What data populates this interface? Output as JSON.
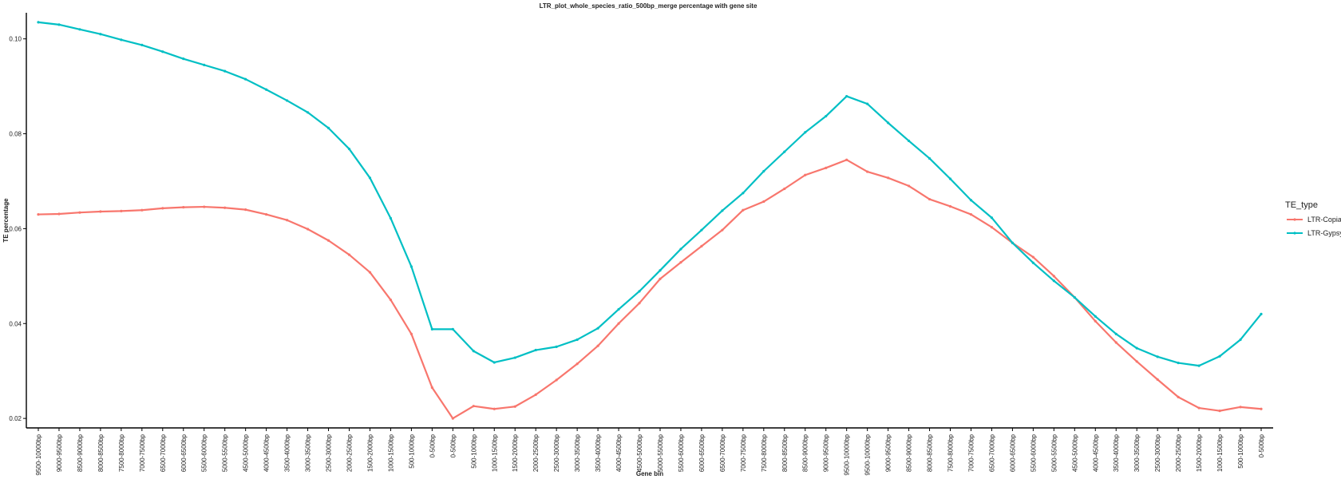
{
  "chart_data": {
    "type": "line",
    "title": "LTR_plot_whole_species_ratio_500bp_merge percentage with gene site",
    "xlabel": "Gene bin",
    "ylabel": "TE percentage",
    "ylim": [
      0.018,
      0.1055
    ],
    "yticks": [
      0.02,
      0.04,
      0.06,
      0.08,
      0.1
    ],
    "ytick_labels": [
      "0.02",
      "0.04",
      "0.06",
      "0.08",
      "0.10"
    ],
    "grid": false,
    "legend": {
      "title": "TE_type",
      "position": "right"
    },
    "categories": [
      "9500-10000bp",
      "9000-9500bp",
      "8500-9000bp",
      "8000-8500bp",
      "7500-8000bp",
      "7000-7500bp",
      "6500-7000bp",
      "6000-6500bp",
      "5500-6000bp",
      "5000-5500bp",
      "4500-5000bp",
      "4000-4500bp",
      "3500-4000bp",
      "3000-3500bp",
      "2500-3000bp",
      "2000-2500bp",
      "1500-2000bp",
      "1000-1500bp",
      "500-1000bp",
      "0-500bp",
      "0-500bp",
      "500-1000bp",
      "1000-1500bp",
      "1500-2000bp",
      "2000-2500bp",
      "2500-3000bp",
      "3000-3500bp",
      "3500-4000bp",
      "4000-4500bp",
      "4500-5000bp",
      "5000-5500bp",
      "5500-6000bp",
      "6000-6500bp",
      "6500-7000bp",
      "7000-7500bp",
      "7500-8000bp",
      "8000-8500bp",
      "8500-9000bp",
      "9000-9500bp",
      "9500-10000bp",
      "9500-10000bp",
      "9000-9500bp",
      "8500-9000bp",
      "8000-8500bp",
      "7500-8000bp",
      "7000-7500bp",
      "6500-7000bp",
      "6000-6500bp",
      "5500-6000bp",
      "5000-5500bp",
      "4500-5000bp",
      "4000-4500bp",
      "3500-4000bp",
      "3000-3500bp",
      "2500-3000bp",
      "2000-2500bp",
      "1500-2000bp",
      "1000-1500bp",
      "500-1000bp",
      "0-500bp"
    ],
    "series": [
      {
        "name": "LTR-Copia",
        "color": "#F8766D",
        "values": [
          0.063,
          0.0631,
          0.0634,
          0.0636,
          0.0637,
          0.0639,
          0.0643,
          0.0645,
          0.0646,
          0.0644,
          0.064,
          0.063,
          0.0618,
          0.0599,
          0.0575,
          0.0545,
          0.0508,
          0.045,
          0.0378,
          0.0265,
          0.02,
          0.0226,
          0.022,
          0.0225,
          0.025,
          0.0281,
          0.0315,
          0.0353,
          0.04,
          0.0443,
          0.0494,
          0.0529,
          0.0563,
          0.0597,
          0.0639,
          0.0657,
          0.0684,
          0.0713,
          0.0728,
          0.0745,
          0.072,
          0.0707,
          0.069,
          0.0662,
          0.0647,
          0.063,
          0.0603,
          0.057,
          0.054,
          0.05,
          0.0455,
          0.0405,
          0.036,
          0.032,
          0.0282,
          0.0245,
          0.0222,
          0.0216,
          0.0224,
          0.022
        ]
      },
      {
        "name": "LTR-Gypsy",
        "color": "#00BFC4",
        "values": [
          0.1035,
          0.103,
          0.102,
          0.101,
          0.0998,
          0.0987,
          0.0973,
          0.0958,
          0.0945,
          0.0932,
          0.0915,
          0.0893,
          0.087,
          0.0845,
          0.0812,
          0.0768,
          0.0707,
          0.0622,
          0.052,
          0.0388,
          0.0388,
          0.0342,
          0.0318,
          0.0328,
          0.0344,
          0.0351,
          0.0366,
          0.039,
          0.043,
          0.0468,
          0.0512,
          0.0557,
          0.0597,
          0.0638,
          0.0675,
          0.0721,
          0.0762,
          0.0803,
          0.0837,
          0.0879,
          0.0863,
          0.0823,
          0.0785,
          0.0748,
          0.0705,
          0.066,
          0.0623,
          0.057,
          0.0528,
          0.049,
          0.0455,
          0.0415,
          0.0378,
          0.0348,
          0.033,
          0.0317,
          0.0311,
          0.0331,
          0.0366,
          0.042
        ]
      }
    ]
  }
}
